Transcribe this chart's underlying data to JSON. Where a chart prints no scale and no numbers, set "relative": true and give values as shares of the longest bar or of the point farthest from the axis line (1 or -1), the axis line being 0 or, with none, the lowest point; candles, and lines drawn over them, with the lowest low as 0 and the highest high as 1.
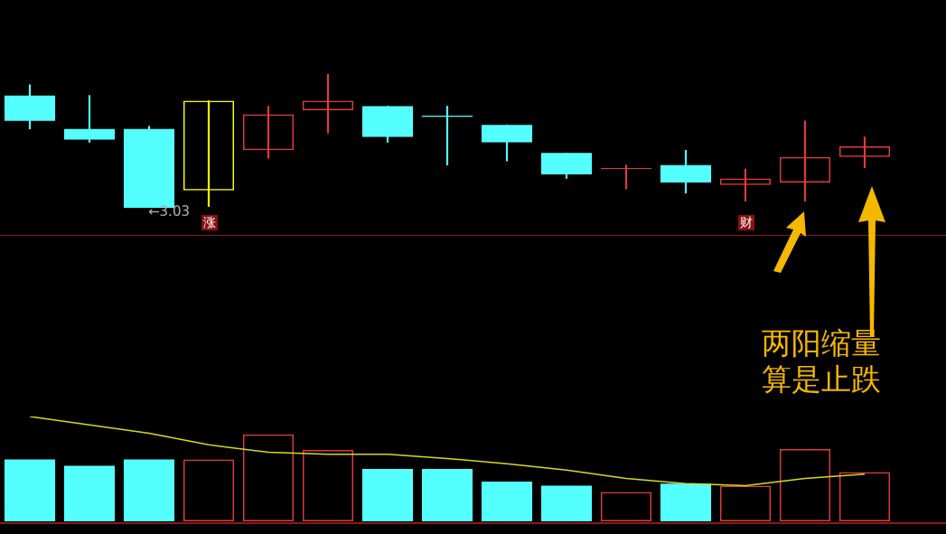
{
  "chart_data": [
    {
      "type": "candlestick",
      "relative": true,
      "categories": [
        null,
        null,
        null,
        null,
        null,
        null,
        null,
        null,
        null,
        null,
        null,
        null,
        null,
        null,
        null
      ],
      "ohlc": [
        [
          0.84,
          0.92,
          0.59,
          0.65
        ],
        [
          0.59,
          0.84,
          0.49,
          0.51
        ],
        [
          0.59,
          0.61,
          0,
          0
        ],
        [
          0.13,
          0.8,
          0.01,
          0.8
        ],
        [
          0.43,
          0.76,
          0.37,
          0.7
        ],
        [
          0.73,
          1,
          0.56,
          0.8
        ],
        [
          0.76,
          0.76,
          0.49,
          0.53
        ],
        [
          0.69,
          0.76,
          0.32,
          0.68
        ],
        [
          0.62,
          0.62,
          0.35,
          0.49
        ],
        [
          0.41,
          0.41,
          0.22,
          0.25
        ],
        [
          0.29,
          0.32,
          0.14,
          0.29
        ],
        [
          0.32,
          0.43,
          0.11,
          0.19
        ],
        [
          0.17,
          0.29,
          0.05,
          0.22
        ],
        [
          0.19,
          0.65,
          0.05,
          0.38
        ],
        [
          0.38,
          0.53,
          0.3,
          0.46
        ]
      ],
      "colors": [
        "#54ffff",
        "#54ffff",
        "#54ffff",
        "#ffff00",
        "#e03c3c",
        "#e03c3c",
        "#54ffff",
        "#54ffff",
        "#54ffff",
        "#54ffff",
        "#e03c3c",
        "#54ffff",
        "#e03c3c",
        "#e03c3c",
        "#e03c3c"
      ],
      "annotations": [
        "←3.03",
        "涨",
        "财",
        "两阳缩量算是止跌"
      ]
    },
    {
      "type": "bar",
      "relative": true,
      "categories": [
        null,
        null,
        null,
        null,
        null,
        null,
        null,
        null,
        null,
        null,
        null,
        null,
        null,
        null,
        null
      ],
      "series": [
        {
          "type": "bar",
          "colors": [
            "#54ffff",
            "#54ffff",
            "#54ffff",
            "#e03c3c",
            "#e03c3c",
            "#e03c3c",
            "#54ffff",
            "#54ffff",
            "#54ffff",
            "#54ffff",
            "#e03c3c",
            "#54ffff",
            "#e03c3c",
            "#e03c3c",
            "#e03c3c"
          ],
          "values": [
            0.59,
            0.53,
            0.59,
            0.59,
            0.83,
            0.68,
            0.5,
            0.5,
            0.38,
            0.34,
            0.28,
            0.36,
            0.34,
            0.69,
            0.47
          ]
        },
        {
          "type": "line",
          "color": "#d8d820",
          "values": [
            1,
            0.92,
            0.84,
            0.73,
            0.66,
            0.64,
            0.64,
            0.6,
            0.55,
            0.49,
            0.41,
            0.36,
            0.34,
            0.41,
            0.45
          ]
        }
      ]
    }
  ]
}
